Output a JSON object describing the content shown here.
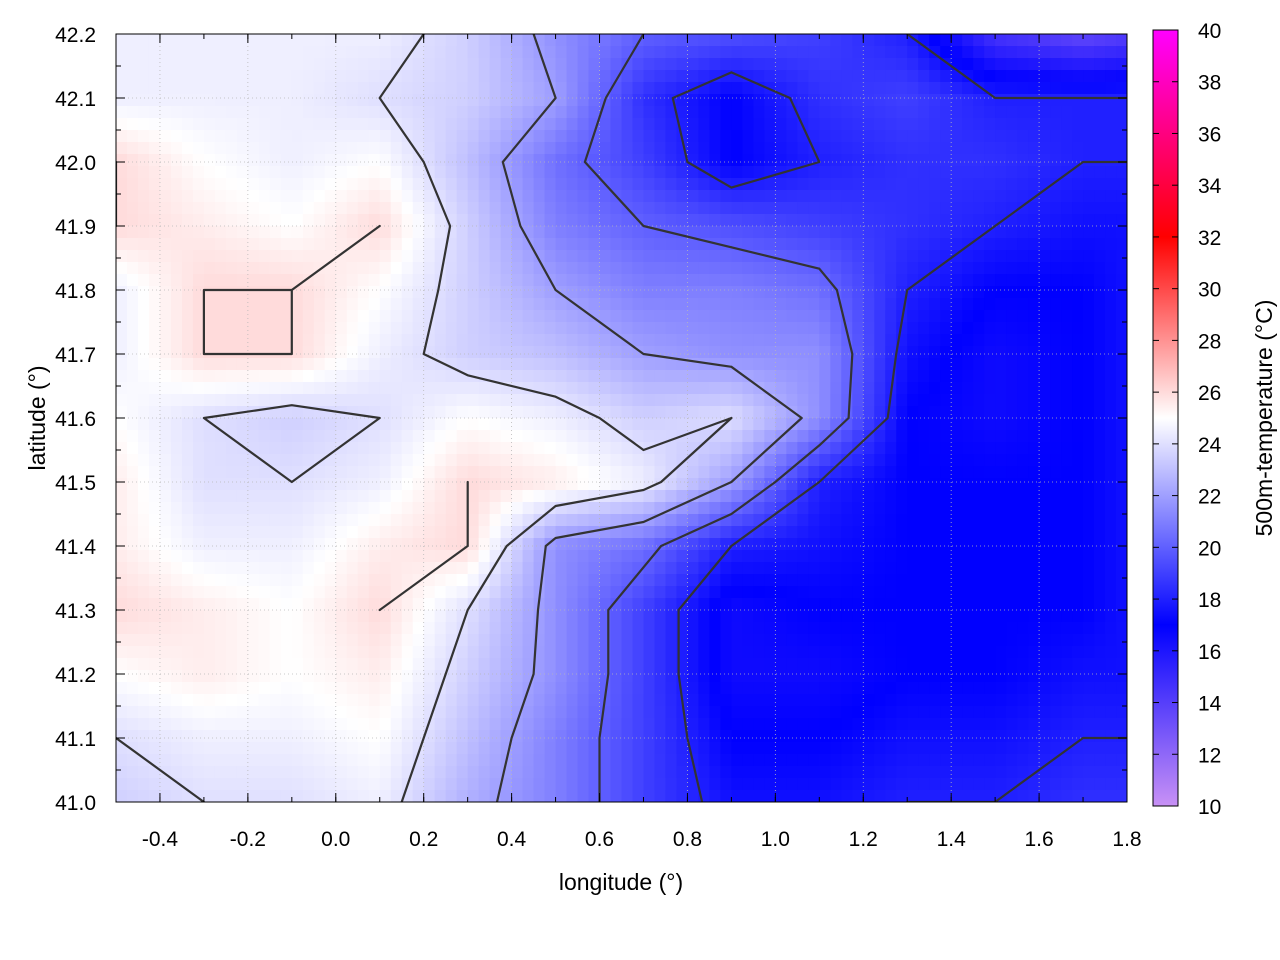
{
  "chart_data": {
    "type": "heatmap",
    "title": "",
    "xlabel": "longitude (°)",
    "ylabel": "latitude (°)",
    "colorbar_label": "500m-temperature (°C)",
    "xlim": [
      -0.5,
      1.8
    ],
    "ylim": [
      41.0,
      42.2
    ],
    "clim": [
      10,
      40
    ],
    "x_ticks": [
      -0.4,
      -0.2,
      0.0,
      0.2,
      0.4,
      0.6,
      0.8,
      1.0,
      1.2,
      1.4,
      1.6,
      1.8
    ],
    "x_tick_labels": [
      "-0.4",
      "-0.2",
      "0.0",
      "0.2",
      "0.4",
      "0.6",
      "0.8",
      "1.0",
      "1.2",
      "1.4",
      "1.6",
      "1.8"
    ],
    "y_ticks": [
      41.0,
      41.1,
      41.2,
      41.3,
      41.4,
      41.5,
      41.6,
      41.7,
      41.8,
      41.9,
      42.0,
      42.1,
      42.2
    ],
    "y_tick_labels": [
      "41.0",
      "41.1",
      "41.2",
      "41.3",
      "41.4",
      "41.5",
      "41.6",
      "41.7",
      "41.8",
      "41.9",
      "42.0",
      "42.1",
      "42.2"
    ],
    "colorbar_ticks": [
      10,
      12,
      14,
      16,
      18,
      20,
      22,
      24,
      26,
      28,
      30,
      32,
      34,
      36,
      38,
      40
    ],
    "colorbar_tick_labels": [
      "10",
      "12",
      "14",
      "16",
      "18",
      "20",
      "22",
      "24",
      "26",
      "28",
      "30",
      "32",
      "34",
      "36",
      "38",
      "40"
    ],
    "colormap_stops": [
      {
        "value": 10,
        "color": "#c891f5"
      },
      {
        "value": 17,
        "color": "#0000ff"
      },
      {
        "value": 25,
        "color": "#ffffff"
      },
      {
        "value": 32,
        "color": "#ff0000"
      },
      {
        "value": 40,
        "color": "#ff00ff"
      }
    ],
    "grid": true,
    "contours": true,
    "contour_color": "#333333",
    "temperature_field": {
      "x": [
        -0.5,
        -0.3,
        -0.1,
        0.1,
        0.3,
        0.5,
        0.7,
        0.9,
        1.1,
        1.3,
        1.5,
        1.7,
        1.8
      ],
      "y": [
        41.0,
        41.1,
        41.2,
        41.3,
        41.4,
        41.5,
        41.6,
        41.7,
        41.8,
        41.9,
        42.0,
        42.1,
        42.2
      ],
      "values": [
        [
          23.5,
          24.0,
          24.0,
          24.5,
          22.5,
          21.0,
          19.0,
          17.5,
          17.5,
          18.0,
          18.0,
          18.5,
          18.5
        ],
        [
          24.0,
          24.5,
          24.5,
          25.0,
          23.0,
          21.0,
          19.0,
          17.0,
          17.0,
          17.5,
          17.5,
          18.0,
          18.0
        ],
        [
          25.0,
          25.5,
          25.0,
          25.5,
          23.5,
          21.5,
          19.0,
          16.5,
          16.5,
          17.0,
          17.0,
          17.5,
          17.5
        ],
        [
          26.0,
          25.5,
          25.0,
          26.0,
          24.0,
          21.5,
          19.0,
          16.5,
          17.0,
          17.0,
          17.0,
          17.0,
          17.5
        ],
        [
          25.5,
          24.5,
          24.5,
          25.5,
          26.0,
          21.5,
          20.5,
          18.0,
          17.5,
          17.0,
          17.0,
          17.0,
          17.5
        ],
        [
          25.5,
          24.0,
          24.0,
          24.5,
          26.0,
          25.5,
          24.5,
          22.0,
          18.0,
          17.0,
          17.0,
          17.0,
          17.5
        ],
        [
          25.0,
          24.0,
          23.5,
          24.0,
          25.0,
          24.5,
          23.5,
          24.0,
          21.5,
          17.0,
          16.5,
          17.0,
          17.5
        ],
        [
          24.5,
          26.0,
          26.0,
          24.5,
          23.5,
          23.0,
          22.0,
          21.5,
          21.5,
          17.5,
          16.5,
          17.0,
          17.5
        ],
        [
          24.5,
          26.0,
          26.0,
          25.0,
          23.5,
          22.0,
          21.0,
          21.0,
          20.5,
          18.0,
          17.0,
          17.0,
          17.5
        ],
        [
          26.0,
          25.5,
          25.0,
          26.0,
          23.5,
          21.0,
          20.0,
          19.5,
          19.0,
          18.5,
          18.0,
          17.5,
          17.5
        ],
        [
          26.0,
          25.0,
          24.5,
          25.0,
          23.0,
          20.5,
          19.0,
          17.0,
          18.0,
          18.5,
          18.5,
          18.0,
          18.0
        ],
        [
          24.5,
          24.5,
          24.5,
          24.0,
          23.5,
          22.0,
          18.5,
          17.0,
          18.5,
          19.0,
          18.0,
          18.0,
          18.0
        ],
        [
          24.5,
          24.5,
          24.5,
          24.5,
          23.5,
          21.5,
          20.0,
          19.5,
          19.0,
          18.0,
          14.5,
          13.5,
          14.0
        ]
      ]
    }
  }
}
